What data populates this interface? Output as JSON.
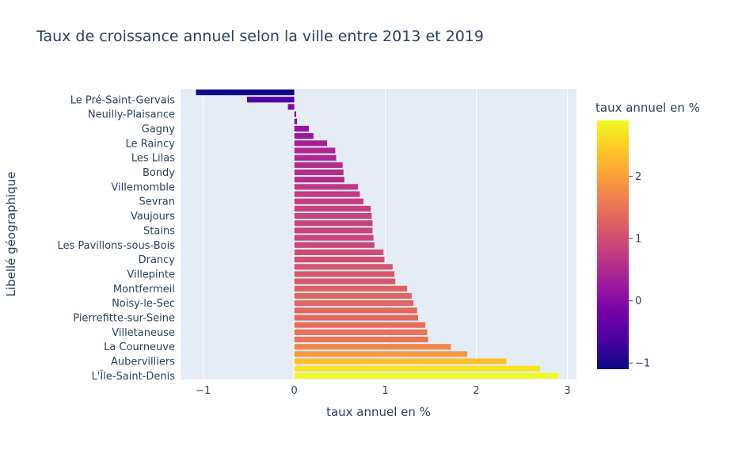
{
  "chart_data": {
    "type": "bar",
    "orientation": "horizontal",
    "title": "Taux de croissance annuel selon la ville entre 2013 et 2019",
    "xlabel": "taux annuel en %",
    "ylabel": "Libellé géographique",
    "xlim": [
      -1.25,
      3.1
    ],
    "xticks": [
      -1,
      0,
      1,
      2,
      3
    ],
    "xtick_labels": [
      "−1",
      "0",
      "1",
      "2",
      "3"
    ],
    "grid": true,
    "colorbar": {
      "title": "taux annuel en %",
      "range": [
        -1.1,
        2.9
      ],
      "ticks": [
        -1,
        0,
        1,
        2
      ],
      "tick_labels": [
        "−1",
        "0",
        "1",
        "2"
      ],
      "colorscale": [
        "#0d0887",
        "#46039f",
        "#7201a8",
        "#9c179e",
        "#bd3786",
        "#d8576b",
        "#ed7953",
        "#fb9f3a",
        "#fdca26",
        "#f0f921"
      ]
    },
    "categories": [
      "",
      "Le Pré-Saint-Gervais",
      "",
      "Neuilly-Plaisance",
      "",
      "Gagny",
      "",
      "Le Raincy",
      "",
      "Les Lilas",
      "",
      "Bondy",
      "",
      "Villemomble",
      "",
      "Sevran",
      "",
      "Vaujours",
      "",
      "Stains",
      "",
      "Les Pavillons-sous-Bois",
      "",
      "Drancy",
      "",
      "Villepinte",
      "",
      "Montfermeil",
      "",
      "Noisy-le-Sec",
      "",
      "Pierrefitte-sur-Seine",
      "",
      "Villetaneuse",
      "",
      "La Courneuve",
      "",
      "Aubervilliers",
      "",
      "L'Île-Saint-Denis"
    ],
    "values": [
      -1.08,
      -0.52,
      -0.07,
      0.02,
      0.03,
      0.16,
      0.21,
      0.36,
      0.45,
      0.46,
      0.53,
      0.54,
      0.55,
      0.7,
      0.72,
      0.76,
      0.84,
      0.85,
      0.86,
      0.86,
      0.87,
      0.88,
      0.98,
      0.99,
      1.08,
      1.1,
      1.11,
      1.24,
      1.29,
      1.31,
      1.35,
      1.36,
      1.44,
      1.46,
      1.47,
      1.72,
      1.9,
      2.33,
      2.7,
      2.9
    ],
    "label_every": 2
  }
}
